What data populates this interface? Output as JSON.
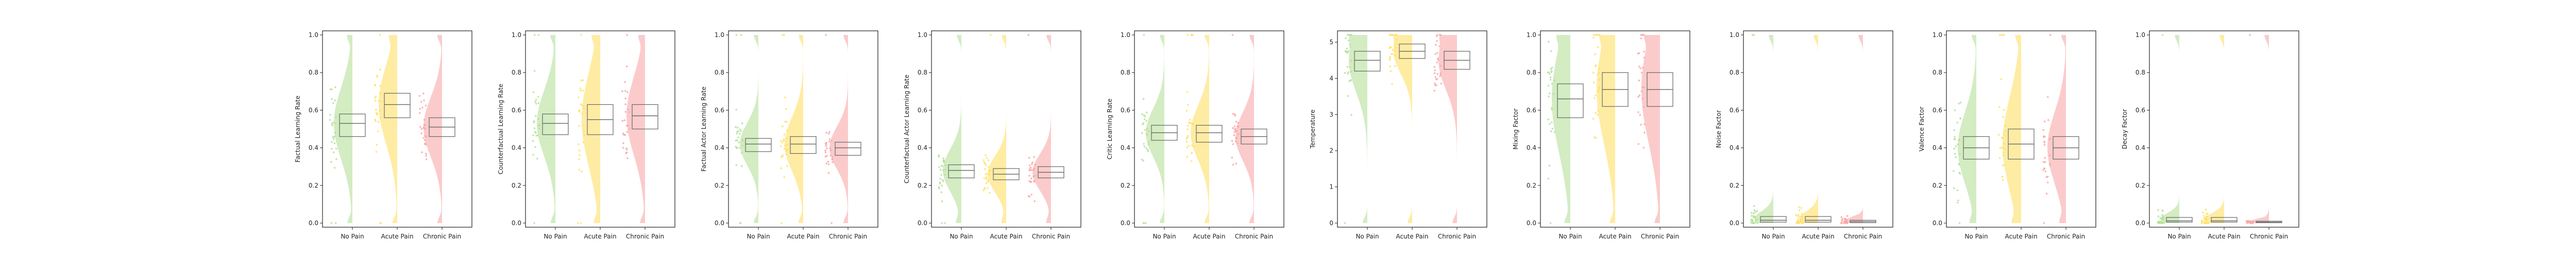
{
  "groups": [
    "No Pain",
    "Acute Pain",
    "Chronic Pain"
  ],
  "colors": {
    "No Pain": "#b5e09a",
    "Acute Pain": "#ffe066",
    "Chronic Pain": "#f9a8a8",
    "box": "#666666"
  },
  "chart_data": [
    {
      "type": "raincloud",
      "ylabel": "Factual Learning Rate",
      "ylim": [
        0,
        1
      ],
      "yticks": [
        "0.0",
        "0.2",
        "0.4",
        "0.6",
        "0.8",
        "1.0"
      ],
      "ytick_values": [
        0,
        0.2,
        0.4,
        0.6,
        0.8,
        1.0
      ],
      "series": [
        {
          "q1": 0.46,
          "median": 0.53,
          "q3": 0.58
        },
        {
          "q1": 0.56,
          "median": 0.63,
          "q3": 0.69
        },
        {
          "q1": 0.46,
          "median": 0.51,
          "q3": 0.56
        }
      ]
    },
    {
      "type": "raincloud",
      "ylabel": "Counterfactual Learning Rate",
      "ylim": [
        0,
        1
      ],
      "yticks": [
        "0.0",
        "0.2",
        "0.4",
        "0.6",
        "0.8",
        "1.0"
      ],
      "ytick_values": [
        0,
        0.2,
        0.4,
        0.6,
        0.8,
        1.0
      ],
      "series": [
        {
          "q1": 0.47,
          "median": 0.53,
          "q3": 0.58
        },
        {
          "q1": 0.47,
          "median": 0.55,
          "q3": 0.63
        },
        {
          "q1": 0.5,
          "median": 0.57,
          "q3": 0.63
        }
      ]
    },
    {
      "type": "raincloud",
      "ylabel": "Factual Actor Learning Rate",
      "ylim": [
        0,
        1
      ],
      "yticks": [
        "0.0",
        "0.2",
        "0.4",
        "0.6",
        "0.8",
        "1.0"
      ],
      "ytick_values": [
        0,
        0.2,
        0.4,
        0.6,
        0.8,
        1.0
      ],
      "series": [
        {
          "q1": 0.38,
          "median": 0.42,
          "q3": 0.45
        },
        {
          "q1": 0.37,
          "median": 0.42,
          "q3": 0.46
        },
        {
          "q1": 0.36,
          "median": 0.4,
          "q3": 0.43
        }
      ]
    },
    {
      "type": "raincloud",
      "ylabel": "Counterfactual Actor Learning Rate",
      "ylim": [
        0,
        1
      ],
      "yticks": [
        "0.0",
        "0.2",
        "0.4",
        "0.6",
        "0.8",
        "1.0"
      ],
      "ytick_values": [
        0,
        0.2,
        0.4,
        0.6,
        0.8,
        1.0
      ],
      "series": [
        {
          "q1": 0.24,
          "median": 0.28,
          "q3": 0.31
        },
        {
          "q1": 0.23,
          "median": 0.26,
          "q3": 0.29
        },
        {
          "q1": 0.24,
          "median": 0.27,
          "q3": 0.3
        }
      ]
    },
    {
      "type": "raincloud",
      "ylabel": "Critic Learning Rate",
      "ylim": [
        0,
        1
      ],
      "yticks": [
        "0.0",
        "0.2",
        "0.4",
        "0.6",
        "0.8",
        "1.0"
      ],
      "ytick_values": [
        0,
        0.2,
        0.4,
        0.6,
        0.8,
        1.0
      ],
      "series": [
        {
          "q1": 0.44,
          "median": 0.48,
          "q3": 0.52
        },
        {
          "q1": 0.43,
          "median": 0.48,
          "q3": 0.52
        },
        {
          "q1": 0.42,
          "median": 0.46,
          "q3": 0.5
        }
      ]
    },
    {
      "type": "raincloud",
      "ylabel": "Temperature",
      "ylim": [
        0,
        5.2
      ],
      "yticks": [
        "0",
        "1",
        "2",
        "3",
        "4",
        "5"
      ],
      "ytick_values": [
        0,
        1,
        2,
        3,
        4,
        5
      ],
      "series": [
        {
          "q1": 4.2,
          "median": 4.5,
          "q3": 4.75
        },
        {
          "q1": 4.55,
          "median": 4.75,
          "q3": 4.95
        },
        {
          "q1": 4.25,
          "median": 4.5,
          "q3": 4.75
        }
      ]
    },
    {
      "type": "raincloud",
      "ylabel": "Mixing Factor",
      "ylim": [
        0,
        1
      ],
      "yticks": [
        "0.0",
        "0.2",
        "0.4",
        "0.6",
        "0.8",
        "1.0"
      ],
      "ytick_values": [
        0,
        0.2,
        0.4,
        0.6,
        0.8,
        1.0
      ],
      "series": [
        {
          "q1": 0.56,
          "median": 0.66,
          "q3": 0.74
        },
        {
          "q1": 0.62,
          "median": 0.71,
          "q3": 0.8
        },
        {
          "q1": 0.62,
          "median": 0.71,
          "q3": 0.8
        }
      ]
    },
    {
      "type": "raincloud",
      "ylabel": "Noise Factor",
      "ylim": [
        0,
        1
      ],
      "yticks": [
        "0.0",
        "0.2",
        "0.4",
        "0.6",
        "0.8",
        "1.0"
      ],
      "ytick_values": [
        0,
        0.2,
        0.4,
        0.6,
        0.8,
        1.0
      ],
      "series": [
        {
          "q1": 0.005,
          "median": 0.015,
          "q3": 0.035
        },
        {
          "q1": 0.005,
          "median": 0.015,
          "q3": 0.035
        },
        {
          "q1": 0.002,
          "median": 0.008,
          "q3": 0.015
        }
      ]
    },
    {
      "type": "raincloud",
      "ylabel": "Valence Factor",
      "ylim": [
        0,
        1
      ],
      "yticks": [
        "0.0",
        "0.2",
        "0.4",
        "0.6",
        "0.8",
        "1.0"
      ],
      "ytick_values": [
        0,
        0.2,
        0.4,
        0.6,
        0.8,
        1.0
      ],
      "series": [
        {
          "q1": 0.34,
          "median": 0.4,
          "q3": 0.46
        },
        {
          "q1": 0.34,
          "median": 0.42,
          "q3": 0.5
        },
        {
          "q1": 0.34,
          "median": 0.4,
          "q3": 0.46
        }
      ]
    },
    {
      "type": "raincloud",
      "ylabel": "Decay Factor",
      "ylim": [
        0,
        1
      ],
      "yticks": [
        "0.0",
        "0.2",
        "0.4",
        "0.6",
        "0.8",
        "1.0"
      ],
      "ytick_values": [
        0,
        0.2,
        0.4,
        0.6,
        0.8,
        1.0
      ],
      "series": [
        {
          "q1": 0.005,
          "median": 0.012,
          "q3": 0.03
        },
        {
          "q1": 0.005,
          "median": 0.012,
          "q3": 0.03
        },
        {
          "q1": 0.002,
          "median": 0.005,
          "q3": 0.01
        }
      ]
    }
  ]
}
